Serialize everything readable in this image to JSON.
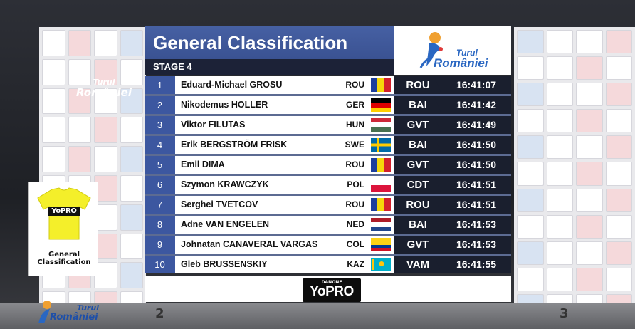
{
  "header": {
    "title": "General Classification",
    "stage": "STAGE 4"
  },
  "event_logo": {
    "turul": "Turul",
    "romaniei": "României"
  },
  "jersey": {
    "brand": "YoPRO",
    "label_line1": "General",
    "label_line2": "Classification",
    "color": "#f4ef2a"
  },
  "background_logo": {
    "turul": "Turul",
    "romaniei": "României"
  },
  "sponsor": {
    "small": "DANONE",
    "big": "YoPRO"
  },
  "podium": [
    "2",
    "3"
  ],
  "colors": {
    "header_blue": "#3c57a0",
    "dark_navy": "#1a1f2e",
    "logo_blue": "#2a67c2"
  },
  "standings": [
    {
      "rank": "1",
      "name": "Eduard-Michael GROSU",
      "nat": "ROU",
      "flag": "ROU",
      "team": "ROU",
      "time": "16:41:07"
    },
    {
      "rank": "2",
      "name": "Nikodemus HOLLER",
      "nat": "GER",
      "flag": "GER",
      "team": "BAI",
      "time": "16:41:42"
    },
    {
      "rank": "3",
      "name": "Viktor FILUTAS",
      "nat": "HUN",
      "flag": "HUN",
      "team": "GVT",
      "time": "16:41:49"
    },
    {
      "rank": "4",
      "name": "Erik BERGSTRÖM FRISK",
      "nat": "SWE",
      "flag": "SWE",
      "team": "BAI",
      "time": "16:41:50"
    },
    {
      "rank": "5",
      "name": "Emil DIMA",
      "nat": "ROU",
      "flag": "ROU",
      "team": "GVT",
      "time": "16:41:50"
    },
    {
      "rank": "6",
      "name": "Szymon KRAWCZYK",
      "nat": "POL",
      "flag": "POL",
      "team": "CDT",
      "time": "16:41:51"
    },
    {
      "rank": "7",
      "name": "Serghei TVETCOV",
      "nat": "ROU",
      "flag": "ROU",
      "team": "ROU",
      "time": "16:41:51"
    },
    {
      "rank": "8",
      "name": "Adne VAN ENGELEN",
      "nat": "NED",
      "flag": "NED",
      "team": "BAI",
      "time": "16:41:53"
    },
    {
      "rank": "9",
      "name": "Johnatan CANAVERAL VARGAS",
      "nat": "COL",
      "flag": "COL",
      "team": "GVT",
      "time": "16:41:53"
    },
    {
      "rank": "10",
      "name": "Gleb BRUSSENSKIY",
      "nat": "KAZ",
      "flag": "KAZ",
      "team": "VAM",
      "time": "16:41:55"
    }
  ]
}
